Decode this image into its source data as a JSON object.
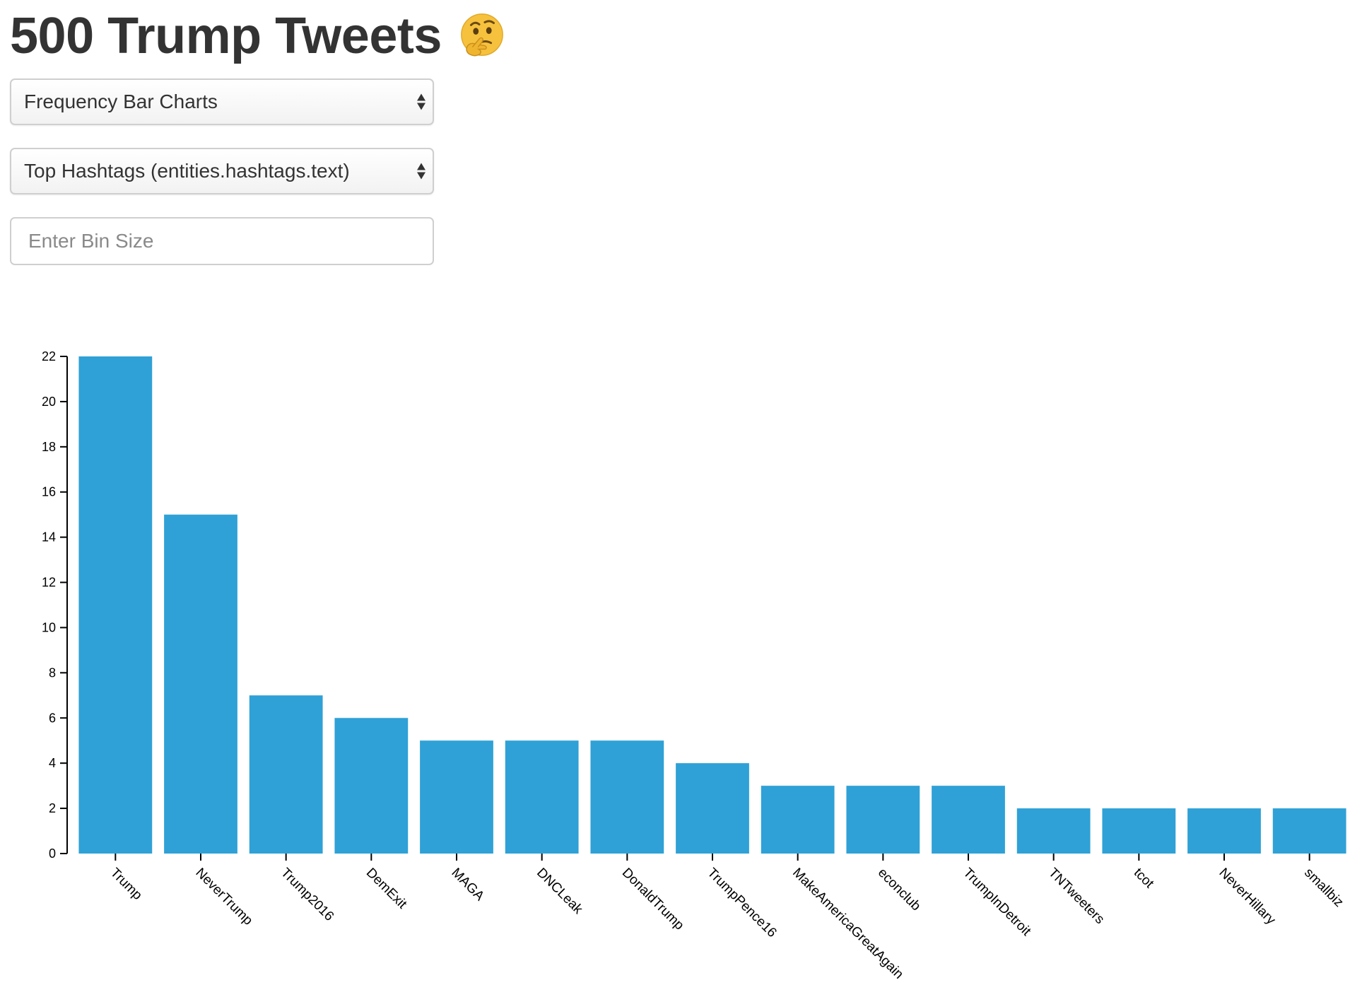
{
  "header": {
    "title": "500 Trump Tweets",
    "emoji": "thinking-face-icon"
  },
  "controls": {
    "chart_type_select": {
      "value": "Frequency Bar Charts"
    },
    "field_select": {
      "value": "Top Hashtags (entities.hashtags.text)"
    },
    "bin_size_input": {
      "placeholder": "Enter Bin Size",
      "value": ""
    }
  },
  "colors": {
    "bar": "#2fa1d6",
    "text": "#333333",
    "axis": "#000000"
  },
  "chart_data": {
    "type": "bar",
    "title": "",
    "xlabel": "",
    "ylabel": "",
    "ylim": [
      0,
      22
    ],
    "yticks": [
      0,
      2,
      4,
      6,
      8,
      10,
      12,
      14,
      16,
      18,
      20,
      22
    ],
    "grid": false,
    "categories": [
      "Trump",
      "NeverTrump",
      "Trump2016",
      "DemExit",
      "MAGA",
      "DNCLeak",
      "DonaldTrump",
      "TrumpPence16",
      "MakeAmericaGreatAgain",
      "econclub",
      "TrumpInDetroit",
      "TNTweeters",
      "tcot",
      "NeverHillary",
      "smallbiz"
    ],
    "values": [
      22,
      15,
      7,
      6,
      5,
      5,
      5,
      4,
      3,
      3,
      3,
      2,
      2,
      2,
      2
    ]
  }
}
